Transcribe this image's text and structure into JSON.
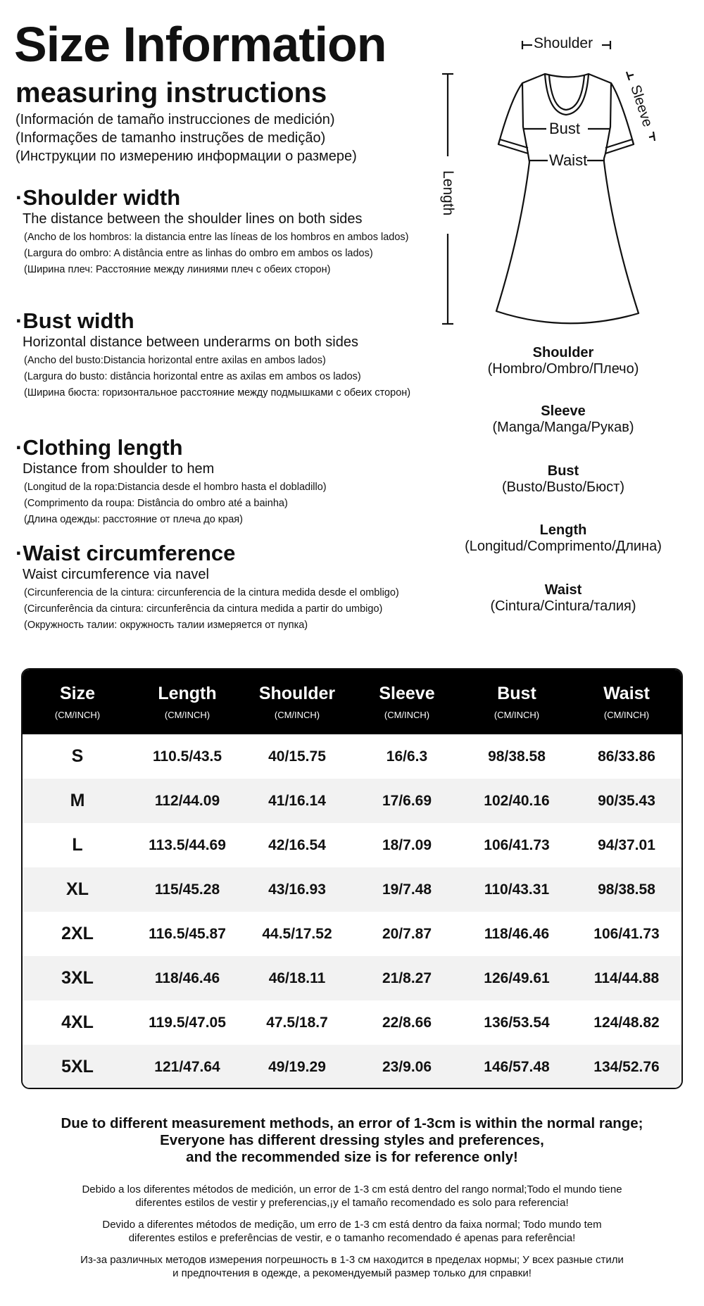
{
  "header": {
    "title": "Size Information",
    "subtitle": "measuring instructions",
    "translations": [
      "(Información de tamaño instrucciones de medición)",
      "(Informações de tamanho instruções de medição)",
      "(Инструкции по измерению информации о размере)"
    ]
  },
  "sections": [
    {
      "title": "·Shoulder width",
      "en": "The distance between the shoulder lines on both sides",
      "subs": [
        "(Ancho de los hombros: la distancia entre las líneas de los hombros en ambos lados)",
        "(Largura do ombro: A distância entre as linhas do ombro em ambos os lados)",
        "(Ширина плеч: Расстояние между линиями плеч с обеих сторон)"
      ]
    },
    {
      "title": "·Bust width",
      "en": "Horizontal distance between underarms on both sides",
      "subs": [
        "(Ancho del busto:Distancia horizontal entre axilas en ambos lados)",
        "(Largura do busto: distância horizontal entre as axilas em ambos os lados)",
        "(Ширина бюста: горизонтальное расстояние между подмышками с обеих сторон)"
      ]
    },
    {
      "title": "·Clothing length",
      "en": "Distance from shoulder to hem",
      "subs": [
        "(Longitud de la ropa:Distancia desde el hombro hasta el dobladillo)",
        "(Comprimento da roupa: Distância do ombro até a bainha)",
        "(Длина одежды: расстояние от плеча до края)"
      ]
    },
    {
      "title": "·Waist circumference",
      "en": "Waist circumference via navel",
      "subs": [
        "(Circunferencia de la cintura: circunferencia de la cintura medida desde el ombligo)",
        "(Circunferência da cintura: circunferência da cintura medida a partir do umbigo)",
        "(Окружность талии: окружность талии измеряется от пупка)"
      ]
    }
  ],
  "diagram": {
    "shoulder": "Shoulder",
    "sleeve": "Sleeve",
    "bust": "Bust",
    "waist": "Waist",
    "length": "Length"
  },
  "legend": [
    {
      "name": "Shoulder",
      "trans": "(Hombro/Ombro/Плечо)"
    },
    {
      "name": "Sleeve",
      "trans": "(Manga/Manga/Рукав)"
    },
    {
      "name": "Bust",
      "trans": "(Busto/Busto/Бюст)"
    },
    {
      "name": "Length",
      "trans": "(Longitud/Comprimento/Длина)"
    },
    {
      "name": "Waist",
      "trans": "(Cintura/Cintura/талия)"
    }
  ],
  "table": {
    "headers": [
      {
        "label": "Size",
        "unit": "(CM/INCH)"
      },
      {
        "label": "Length",
        "unit": "(CM/INCH)"
      },
      {
        "label": "Shoulder",
        "unit": "(CM/INCH)"
      },
      {
        "label": "Sleeve",
        "unit": "(CM/INCH)"
      },
      {
        "label": "Bust",
        "unit": "(CM/INCH)"
      },
      {
        "label": "Waist",
        "unit": "(CM/INCH)"
      }
    ],
    "rows": [
      [
        "S",
        "110.5/43.5",
        "40/15.75",
        "16/6.3",
        "98/38.58",
        "86/33.86"
      ],
      [
        "M",
        "112/44.09",
        "41/16.14",
        "17/6.69",
        "102/40.16",
        "90/35.43"
      ],
      [
        "L",
        "113.5/44.69",
        "42/16.54",
        "18/7.09",
        "106/41.73",
        "94/37.01"
      ],
      [
        "XL",
        "115/45.28",
        "43/16.93",
        "19/7.48",
        "110/43.31",
        "98/38.58"
      ],
      [
        "2XL",
        "116.5/45.87",
        "44.5/17.52",
        "20/7.87",
        "118/46.46",
        "106/41.73"
      ],
      [
        "3XL",
        "118/46.46",
        "46/18.11",
        "21/8.27",
        "126/49.61",
        "114/44.88"
      ],
      [
        "4XL",
        "119.5/47.05",
        "47.5/18.7",
        "22/8.66",
        "136/53.54",
        "124/48.82"
      ],
      [
        "5XL",
        "121/47.64",
        "49/19.29",
        "23/9.06",
        "146/57.48",
        "134/52.76"
      ]
    ]
  },
  "notes": {
    "bold": [
      "Due to different measurement methods, an error of 1-3cm is within the normal range;",
      "Everyone has different dressing styles and preferences,",
      "and the recommended size is for reference only!"
    ],
    "es": [
      "Debido a los diferentes métodos de medición, un error de 1-3 cm está dentro del rango normal;Todo el mundo tiene",
      "diferentes estilos de vestir y preferencias,¡y el tamaño recomendado es solo para referencia!"
    ],
    "pt": [
      "Devido a diferentes métodos de medição, um erro de 1-3 cm está dentro da faixa normal; Todo mundo tem",
      "diferentes estilos e preferências de vestir, e o tamanho recomendado é apenas para referência!"
    ],
    "ru": [
      "Из-за различных методов измерения погрешность в 1-3 см находится в пределах нормы; У всех разные стили",
      "и предпочтения в одежде, а рекомендуемый размер только для справки!"
    ]
  },
  "colors": {
    "header_bg": "#000000",
    "alt_row": "#f2f2f2",
    "text": "#111111"
  }
}
